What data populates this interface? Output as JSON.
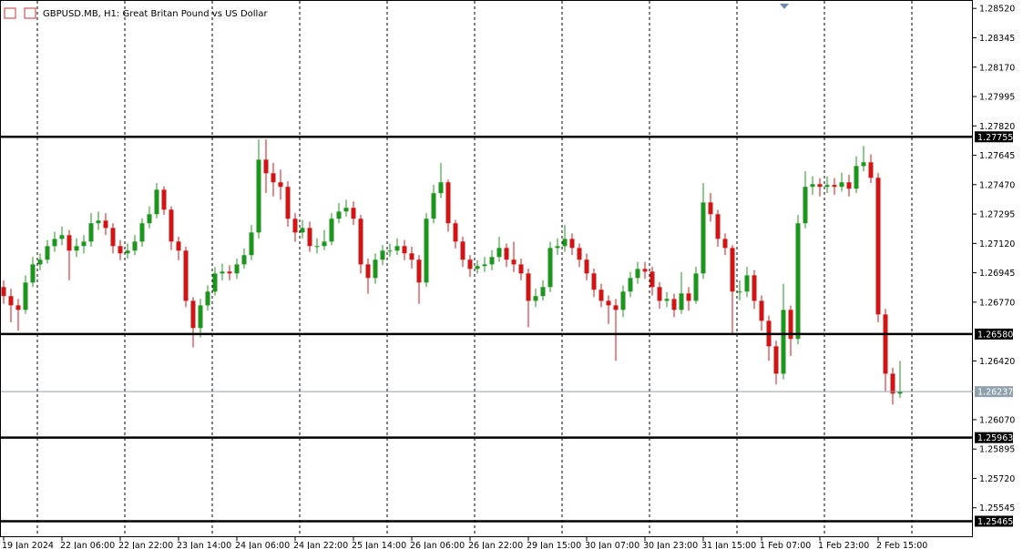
{
  "chart_data": {
    "type": "candlestick",
    "title": "GBPUSD.MB, H1:  Great Britan Pound vs US Dollar",
    "categories": [
      "19 Jan 2024",
      null,
      null,
      null,
      null,
      null,
      null,
      null,
      "22 Jan 06:00",
      null,
      null,
      null,
      null,
      null,
      null,
      null,
      "22 Jan 22:00",
      null,
      null,
      null,
      null,
      null,
      null,
      null,
      "23 Jan 14:00",
      null,
      null,
      null,
      null,
      null,
      null,
      null,
      "24 Jan 06:00",
      null,
      null,
      null,
      null,
      null,
      null,
      null,
      "24 Jan 22:00",
      null,
      null,
      null,
      null,
      null,
      null,
      null,
      "25 Jan 14:00",
      null,
      null,
      null,
      null,
      null,
      null,
      null,
      "26 Jan 06:00",
      null,
      null,
      null,
      null,
      null,
      null,
      null,
      "26 Jan 22:00",
      null,
      null,
      null,
      null,
      null,
      null,
      null,
      "29 Jan 15:00",
      null,
      null,
      null,
      null,
      null,
      null,
      null,
      "30 Jan 07:00",
      null,
      null,
      null,
      null,
      null,
      null,
      null,
      "30 Jan 23:00",
      null,
      null,
      null,
      null,
      null,
      null,
      null,
      "31 Jan 15:00",
      null,
      null,
      null,
      null,
      null,
      null,
      null,
      "1 Feb 07:00",
      null,
      null,
      null,
      null,
      null,
      null,
      null,
      "1 Feb 23:00",
      null,
      null,
      null,
      null,
      null,
      null,
      null,
      "2 Feb 15:00",
      null,
      null,
      null
    ],
    "open": [
      1.2686,
      1.26806,
      1.26751,
      1.26724,
      1.26887,
      1.26995,
      1.27023,
      1.27104,
      1.27147,
      1.27169,
      1.27077,
      1.27104,
      1.27131,
      1.2724,
      1.27256,
      1.27212,
      1.27104,
      1.27061,
      1.27077,
      1.27131,
      1.2724,
      1.27294,
      1.2744,
      1.27321,
      1.27131,
      1.27077,
      1.26778,
      1.26616,
      1.26751,
      1.26833,
      1.26941,
      1.26952,
      1.26941,
      1.26995,
      1.2705,
      1.27185,
      1.27619,
      1.27538,
      1.27484,
      1.27457,
      1.27267,
      1.27185,
      1.27212,
      1.27104,
      1.27104,
      1.27131,
      1.27267,
      1.2731,
      1.27332,
      1.27267,
      1.26995,
      1.26914,
      1.27023,
      1.27077,
      1.27077,
      1.27104,
      1.27061,
      1.27023,
      1.26887,
      1.27267,
      1.27419,
      1.27484,
      1.2724,
      1.27131,
      1.27023,
      1.26968,
      1.26985,
      1.26995,
      1.27039,
      1.27093,
      1.27023,
      1.26995,
      1.26941,
      1.26778,
      1.26806,
      1.2686,
      1.27093,
      1.27104,
      1.27147,
      1.27093,
      1.27023,
      1.26941,
      1.26844,
      1.26778,
      1.26751,
      1.26724,
      1.26833,
      1.26914,
      1.26968,
      1.26952,
      1.2686,
      1.26778,
      1.26789,
      1.26724,
      1.26822,
      1.26778,
      1.26941,
      1.27364,
      1.27294,
      1.27147,
      1.27093,
      1.26833,
      1.26833,
      1.2693,
      1.26778,
      1.26659,
      1.26507,
      1.26344,
      1.26724,
      1.26551,
      1.2724,
      1.27457,
      1.27473,
      1.27457,
      1.27468,
      1.27457,
      1.27484,
      1.27446,
      1.27581,
      1.27603,
      1.27511,
      1.26697,
      1.26344,
      1.26225
    ],
    "high": [
      1.269,
      1.2685,
      1.2679,
      1.2693,
      1.2704,
      1.2706,
      1.2714,
      1.2719,
      1.2722,
      1.272,
      1.2715,
      1.2717,
      1.273,
      1.2731,
      1.273,
      1.2724,
      1.2714,
      1.2712,
      1.2717,
      1.2727,
      1.2734,
      1.2748,
      1.2746,
      1.2734,
      1.2716,
      1.271,
      1.268,
      1.2679,
      1.2687,
      1.2698,
      1.27,
      1.2699,
      1.2703,
      1.2709,
      1.2723,
      1.2774,
      1.2774,
      1.276,
      1.2756,
      1.2749,
      1.273,
      1.2726,
      1.2725,
      1.2715,
      1.272,
      1.273,
      1.2736,
      1.2738,
      1.2737,
      1.2729,
      1.2703,
      1.2706,
      1.2711,
      1.2712,
      1.2715,
      1.2714,
      1.271,
      1.2705,
      1.273,
      1.2747,
      1.276,
      1.275,
      1.2726,
      1.2716,
      1.2705,
      1.2702,
      1.2704,
      1.2708,
      1.2716,
      1.2712,
      1.2713,
      1.2703,
      1.2697,
      1.2685,
      1.269,
      1.2713,
      1.2715,
      1.2723,
      1.2718,
      1.2712,
      1.2706,
      1.2697,
      1.2688,
      1.2681,
      1.2679,
      1.2687,
      1.2695,
      1.2701,
      1.2701,
      1.2698,
      1.2689,
      1.2683,
      1.2682,
      1.2695,
      1.2686,
      1.2698,
      1.2748,
      1.2742,
      1.2732,
      1.2718,
      1.2711,
      1.269,
      1.2698,
      1.2696,
      1.2681,
      1.2669,
      1.2654,
      1.2688,
      1.2675,
      1.2729,
      1.2755,
      1.2752,
      1.2751,
      1.2752,
      1.2751,
      1.2754,
      1.2753,
      1.2764,
      1.277,
      1.2765,
      1.2754,
      1.2673,
      1.2638,
      1.2642
    ],
    "low": [
      1.2676,
      1.2665,
      1.266,
      1.267,
      1.2686,
      1.2696,
      1.27,
      1.2707,
      1.2711,
      1.269,
      1.2704,
      1.2706,
      1.271,
      1.272,
      1.2717,
      1.2706,
      1.2702,
      1.2703,
      1.2705,
      1.271,
      1.2721,
      1.2727,
      1.2729,
      1.2708,
      1.2702,
      1.2674,
      1.265,
      1.2656,
      1.2672,
      1.2681,
      1.269,
      1.269,
      1.2691,
      1.2697,
      1.2702,
      1.2715,
      1.2742,
      1.274,
      1.2738,
      1.2722,
      1.2713,
      1.2715,
      1.2707,
      1.2706,
      1.2708,
      1.2711,
      1.2724,
      1.2728,
      1.2723,
      1.2694,
      1.2682,
      1.2688,
      1.2699,
      1.2704,
      1.2705,
      1.2702,
      1.2697,
      1.2676,
      1.2686,
      1.2724,
      1.2739,
      1.2719,
      1.2709,
      1.2698,
      1.2692,
      1.2694,
      1.2695,
      1.2696,
      1.2701,
      1.2698,
      1.2695,
      1.269,
      1.2662,
      1.2674,
      1.2678,
      1.2683,
      1.2705,
      1.2707,
      1.2705,
      1.2698,
      1.269,
      1.268,
      1.2674,
      1.2664,
      1.2642,
      1.2668,
      1.268,
      1.2688,
      1.2691,
      1.2681,
      1.2673,
      1.2674,
      1.2668,
      1.267,
      1.2672,
      1.2676,
      1.2691,
      1.2725,
      1.271,
      1.2705,
      1.2658,
      1.2678,
      1.268,
      1.2673,
      1.266,
      1.2642,
      1.2628,
      1.2631,
      1.2645,
      1.2652,
      1.2721,
      1.2741,
      1.274,
      1.2742,
      1.2741,
      1.2743,
      1.274,
      1.2742,
      1.2755,
      1.2748,
      1.2665,
      1.2624,
      1.2616,
      1.262
    ],
    "close": [
      1.26806,
      1.26751,
      1.26724,
      1.26887,
      1.26995,
      1.27023,
      1.27104,
      1.27147,
      1.27169,
      1.27077,
      1.27104,
      1.27131,
      1.2724,
      1.27256,
      1.27212,
      1.27104,
      1.27061,
      1.27077,
      1.27131,
      1.2724,
      1.27294,
      1.2744,
      1.27321,
      1.27131,
      1.27077,
      1.26778,
      1.26616,
      1.26751,
      1.26833,
      1.26941,
      1.26952,
      1.26941,
      1.26995,
      1.2705,
      1.27185,
      1.27619,
      1.27538,
      1.27484,
      1.27457,
      1.27267,
      1.27185,
      1.27212,
      1.27104,
      1.27104,
      1.27131,
      1.27267,
      1.2731,
      1.27332,
      1.27267,
      1.26995,
      1.26914,
      1.27023,
      1.27077,
      1.27077,
      1.27104,
      1.27061,
      1.27023,
      1.26887,
      1.27267,
      1.27419,
      1.27484,
      1.2724,
      1.27131,
      1.27023,
      1.26968,
      1.26985,
      1.26995,
      1.27039,
      1.27093,
      1.27023,
      1.26995,
      1.26941,
      1.26778,
      1.26806,
      1.2686,
      1.27093,
      1.27104,
      1.27147,
      1.27093,
      1.27023,
      1.26941,
      1.26844,
      1.26778,
      1.26751,
      1.26724,
      1.26833,
      1.26914,
      1.26968,
      1.26952,
      1.2686,
      1.26778,
      1.26789,
      1.26724,
      1.26822,
      1.26778,
      1.26941,
      1.27364,
      1.27294,
      1.27147,
      1.27093,
      1.26833,
      1.26833,
      1.2693,
      1.26778,
      1.26659,
      1.26507,
      1.26344,
      1.26724,
      1.26551,
      1.2724,
      1.27457,
      1.27473,
      1.27457,
      1.27468,
      1.27457,
      1.27484,
      1.27446,
      1.27581,
      1.27603,
      1.27511,
      1.26697,
      1.26344,
      1.26225,
      1.26237
    ],
    "up_color": "#1e961e",
    "down_color": "#d21414",
    "ylim": [
      1.2537,
      1.2857
    ],
    "yticks": [
      {
        "value": 1.2852,
        "label": "1.28520"
      },
      1.28345,
      {
        "value": 1.2817,
        "label": "1.28170"
      },
      1.27995,
      {
        "value": 1.2782,
        "label": "1.27820"
      },
      1.27645,
      {
        "value": 1.2747,
        "label": "1.27470"
      },
      1.27295,
      {
        "value": 1.2712,
        "label": "1.27120"
      },
      1.26945,
      {
        "value": 1.2677,
        "label": "1.26770"
      },
      {
        "value": 1.2642,
        "label": "1.26420"
      },
      {
        "value": 1.2607,
        "label": "1.26070"
      },
      1.25895,
      {
        "value": 1.2572,
        "label": "1.25720"
      },
      1.25545
    ],
    "levels": [
      1.27755,
      {
        "value": 1.2658,
        "label": "1.26580"
      },
      1.25963,
      1.25465
    ],
    "current_price": 1.26237
  }
}
